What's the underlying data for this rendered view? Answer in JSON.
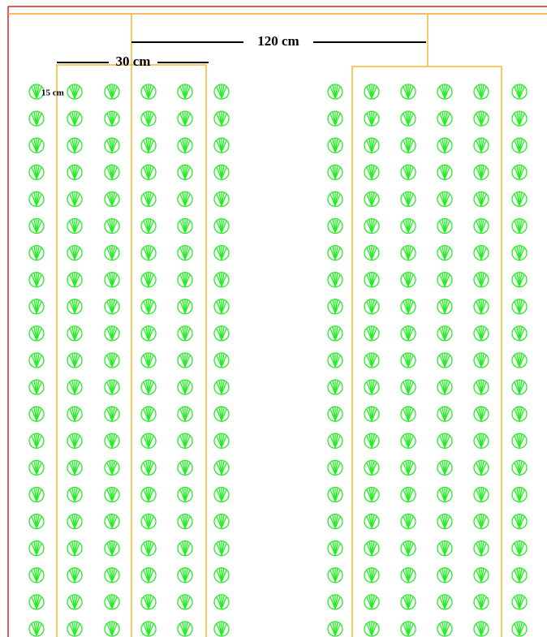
{
  "labels": [
    "120 cm",
    "30 cm",
    "15 cm"
  ]
}
